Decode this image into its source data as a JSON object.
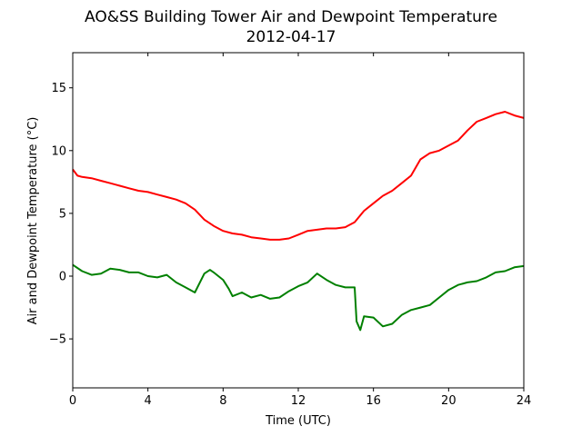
{
  "chart_data": {
    "type": "line",
    "title_line1": "AO&SS Building Tower Air and Dewpoint Temperature",
    "title_line2": "2012-04-17",
    "xlabel": "Time (UTC)",
    "ylabel": "Air and Dewpoint Temperature (°C)",
    "xlim": [
      0,
      24
    ],
    "ylim": [
      -8.9,
      17.8
    ],
    "xticks": [
      0,
      4,
      8,
      12,
      16,
      20,
      24
    ],
    "xtick_labels": [
      "0",
      "4",
      "8",
      "12",
      "16",
      "20",
      "24"
    ],
    "yticks": [
      -5,
      0,
      5,
      10,
      15
    ],
    "ytick_labels": [
      "−5",
      "0",
      "5",
      "10",
      "15"
    ],
    "grid": false,
    "series": [
      {
        "color": "#ff0000",
        "x": [
          0,
          0.25,
          0.5,
          1,
          1.5,
          2,
          2.5,
          3,
          3.5,
          4,
          4.5,
          5,
          5.5,
          6,
          6.5,
          7,
          7.5,
          8,
          8.5,
          9,
          9.5,
          10,
          10.5,
          11,
          11.5,
          12,
          12.5,
          13,
          13.5,
          14,
          14.5,
          15,
          15.5,
          16,
          16.5,
          17,
          17.5,
          18,
          18.5,
          19,
          19.5,
          20,
          20.5,
          21,
          21.5,
          22,
          22.5,
          23,
          23.5,
          24
        ],
        "y": [
          8.5,
          8.0,
          7.9,
          7.8,
          7.6,
          7.4,
          7.2,
          7.0,
          6.8,
          6.7,
          6.5,
          6.3,
          6.1,
          5.8,
          5.3,
          4.5,
          4.0,
          3.6,
          3.4,
          3.3,
          3.1,
          3.0,
          2.9,
          2.9,
          3.0,
          3.3,
          3.6,
          3.7,
          3.8,
          3.8,
          3.9,
          4.3,
          5.2,
          5.8,
          6.4,
          6.8,
          7.4,
          8.0,
          9.3,
          9.8,
          10.0,
          10.4,
          10.8,
          11.6,
          12.3,
          12.6,
          12.9,
          13.1,
          12.8,
          12.6
        ]
      },
      {
        "color": "#008000",
        "x": [
          0,
          0.5,
          1,
          1.5,
          2,
          2.5,
          3,
          3.5,
          4,
          4.5,
          5,
          5.5,
          6,
          6.5,
          7,
          7.3,
          7.5,
          8,
          8.3,
          8.5,
          9,
          9.5,
          10,
          10.5,
          11,
          11.5,
          12,
          12.5,
          13,
          13.5,
          14,
          14.5,
          15,
          15.1,
          15.3,
          15.5,
          16,
          16.5,
          17,
          17.5,
          18,
          18.5,
          19,
          19.5,
          20,
          20.5,
          21,
          21.5,
          22,
          22.5,
          23,
          23.5,
          24
        ],
        "y": [
          0.9,
          0.4,
          0.1,
          0.2,
          0.6,
          0.5,
          0.3,
          0.3,
          0.0,
          -0.1,
          0.1,
          -0.5,
          -0.9,
          -1.3,
          0.2,
          0.5,
          0.3,
          -0.3,
          -1.0,
          -1.6,
          -1.3,
          -1.7,
          -1.5,
          -1.8,
          -1.7,
          -1.2,
          -0.8,
          -0.5,
          0.2,
          -0.3,
          -0.7,
          -0.9,
          -0.9,
          -3.6,
          -4.3,
          -3.2,
          -3.3,
          -4.0,
          -3.8,
          -3.1,
          -2.7,
          -2.5,
          -2.3,
          -1.7,
          -1.1,
          -0.7,
          -0.5,
          -0.4,
          -0.1,
          0.3,
          0.4,
          0.7,
          0.8
        ]
      }
    ]
  }
}
